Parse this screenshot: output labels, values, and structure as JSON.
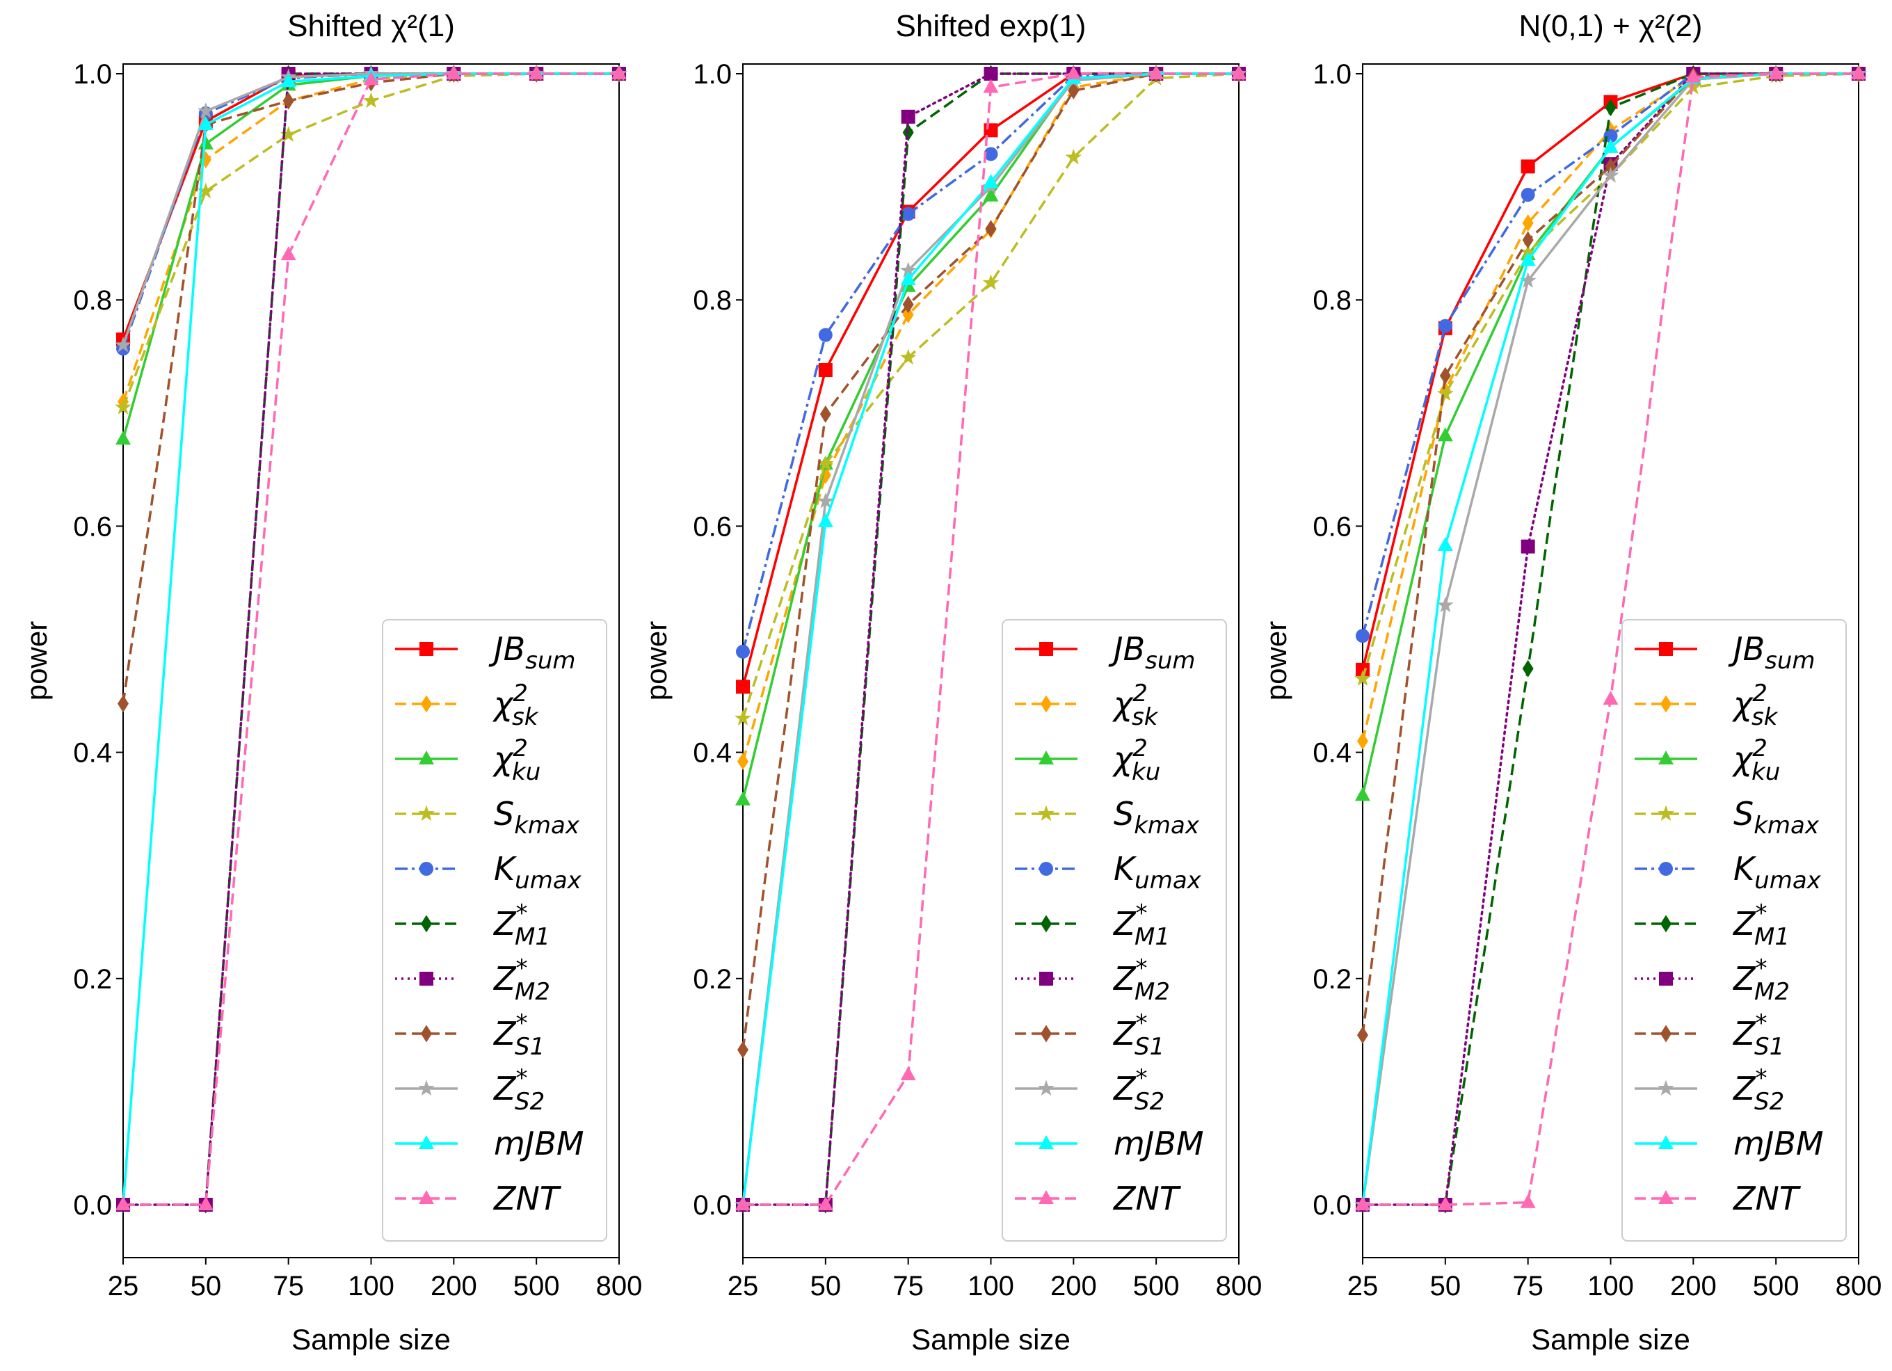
{
  "chart_data": [
    {
      "type": "line",
      "title": "Shifted χ²(1)",
      "xlabel": "Sample size",
      "ylabel": "power",
      "ylim": [
        -0.05,
        1.01
      ],
      "yticks": [
        "0.0",
        "0.2",
        "0.4",
        "0.6",
        "0.8",
        "1.0"
      ],
      "categories": [
        "25",
        "50",
        "75",
        "100",
        "200",
        "500",
        "800"
      ],
      "legend_position": "lower-right",
      "series": [
        {
          "name": "JBsum",
          "values": [
            0.765,
            0.958,
            0.998,
            1.0,
            1.0,
            1.0,
            1.0
          ]
        },
        {
          "name": "χ²sk",
          "values": [
            0.71,
            0.924,
            0.976,
            0.995,
            1.0,
            1.0,
            1.0
          ]
        },
        {
          "name": "χ²ku",
          "values": [
            0.677,
            0.938,
            0.99,
            0.998,
            1.0,
            1.0,
            1.0
          ]
        },
        {
          "name": "Skmax",
          "values": [
            0.705,
            0.896,
            0.946,
            0.976,
            0.998,
            1.0,
            1.0
          ]
        },
        {
          "name": "Kumax",
          "values": [
            0.757,
            0.965,
            0.996,
            1.0,
            1.0,
            1.0,
            1.0
          ]
        },
        {
          "name": "Z*M1",
          "values": [
            0.0,
            0.0,
            1.0,
            1.0,
            1.0,
            1.0,
            1.0
          ]
        },
        {
          "name": "Z*M2",
          "values": [
            0.0,
            0.0,
            1.0,
            1.0,
            1.0,
            1.0,
            1.0
          ]
        },
        {
          "name": "Z*S1",
          "values": [
            0.443,
            0.955,
            0.976,
            0.992,
            1.0,
            1.0,
            1.0
          ]
        },
        {
          "name": "Z*S2",
          "values": [
            0.76,
            0.967,
            0.997,
            1.0,
            1.0,
            1.0,
            1.0
          ]
        },
        {
          "name": "mJBM",
          "values": [
            0.0,
            0.955,
            0.993,
            0.998,
            1.0,
            1.0,
            1.0
          ]
        },
        {
          "name": "ZNT",
          "values": [
            0.0,
            0.0,
            0.84,
            0.995,
            1.0,
            1.0,
            1.0
          ]
        }
      ]
    },
    {
      "type": "line",
      "title": "Shifted exp(1)",
      "xlabel": "Sample size",
      "ylabel": "power",
      "ylim": [
        -0.05,
        1.01
      ],
      "yticks": [
        "0.0",
        "0.2",
        "0.4",
        "0.6",
        "0.8",
        "1.0"
      ],
      "categories": [
        "25",
        "50",
        "75",
        "100",
        "200",
        "500",
        "800"
      ],
      "legend_position": "lower-right",
      "series": [
        {
          "name": "JBsum",
          "values": [
            0.458,
            0.738,
            0.878,
            0.95,
            1.0,
            1.0,
            1.0
          ]
        },
        {
          "name": "χ²sk",
          "values": [
            0.392,
            0.645,
            0.787,
            0.862,
            0.988,
            1.0,
            1.0
          ]
        },
        {
          "name": "χ²ku",
          "values": [
            0.358,
            0.655,
            0.812,
            0.892,
            0.996,
            1.0,
            1.0
          ]
        },
        {
          "name": "Skmax",
          "values": [
            0.43,
            0.655,
            0.749,
            0.815,
            0.926,
            0.996,
            1.0
          ]
        },
        {
          "name": "Kumax",
          "values": [
            0.489,
            0.769,
            0.876,
            0.929,
            0.998,
            1.0,
            1.0
          ]
        },
        {
          "name": "Z*M1",
          "values": [
            0.0,
            0.0,
            0.948,
            1.0,
            1.0,
            1.0,
            1.0
          ]
        },
        {
          "name": "Z*M2",
          "values": [
            0.0,
            0.0,
            0.962,
            1.0,
            1.0,
            1.0,
            1.0
          ]
        },
        {
          "name": "Z*S1",
          "values": [
            0.137,
            0.699,
            0.796,
            0.863,
            0.985,
            1.0,
            1.0
          ]
        },
        {
          "name": "Z*S2",
          "values": [
            0.0,
            0.622,
            0.826,
            0.9,
            0.994,
            1.0,
            1.0
          ]
        },
        {
          "name": "mJBM",
          "values": [
            0.0,
            0.604,
            0.818,
            0.904,
            0.996,
            1.0,
            1.0
          ]
        },
        {
          "name": "ZNT",
          "values": [
            0.0,
            0.0,
            0.115,
            0.988,
            1.0,
            1.0,
            1.0
          ]
        }
      ]
    },
    {
      "type": "line",
      "title": "N(0,1) + χ²(2)",
      "xlabel": "Sample size",
      "ylabel": "power",
      "ylim": [
        -0.05,
        1.01
      ],
      "yticks": [
        "0.0",
        "0.2",
        "0.4",
        "0.6",
        "0.8",
        "1.0"
      ],
      "categories": [
        "25",
        "50",
        "75",
        "100",
        "200",
        "500",
        "800"
      ],
      "legend_position": "lower-right",
      "series": [
        {
          "name": "JBsum",
          "values": [
            0.473,
            0.775,
            0.918,
            0.975,
            1.0,
            1.0,
            1.0
          ]
        },
        {
          "name": "χ²sk",
          "values": [
            0.41,
            0.72,
            0.868,
            0.95,
            0.998,
            1.0,
            1.0
          ]
        },
        {
          "name": "χ²ku",
          "values": [
            0.362,
            0.68,
            0.84,
            0.935,
            0.995,
            1.0,
            1.0
          ]
        },
        {
          "name": "Skmax",
          "values": [
            0.465,
            0.717,
            0.842,
            0.91,
            0.988,
            0.998,
            1.0
          ]
        },
        {
          "name": "Kumax",
          "values": [
            0.503,
            0.777,
            0.893,
            0.945,
            1.0,
            1.0,
            1.0
          ]
        },
        {
          "name": "Z*M1",
          "values": [
            0.0,
            0.0,
            0.474,
            0.97,
            1.0,
            1.0,
            1.0
          ]
        },
        {
          "name": "Z*M2",
          "values": [
            0.0,
            0.0,
            0.582,
            0.92,
            1.0,
            1.0,
            1.0
          ]
        },
        {
          "name": "Z*S1",
          "values": [
            0.15,
            0.733,
            0.853,
            0.918,
            0.998,
            1.0,
            1.0
          ]
        },
        {
          "name": "Z*S2",
          "values": [
            0.0,
            0.53,
            0.817,
            0.91,
            0.995,
            1.0,
            1.0
          ]
        },
        {
          "name": "mJBM",
          "values": [
            0.0,
            0.583,
            0.835,
            0.935,
            0.996,
            1.0,
            1.0
          ]
        },
        {
          "name": "ZNT",
          "values": [
            0.0,
            0.0,
            0.002,
            0.447,
            0.997,
            1.0,
            1.0
          ]
        }
      ]
    }
  ],
  "legend": [
    {
      "key": "JBsum",
      "base": "JB",
      "sub": "sum",
      "sup": "",
      "color": "#ff0000",
      "dash": "",
      "marker": "square"
    },
    {
      "key": "chi2sk",
      "base": "χ",
      "sub": "sk",
      "sup": "2",
      "color": "#ffa500",
      "dash": "16 8",
      "marker": "diamond"
    },
    {
      "key": "chi2ku",
      "base": "χ",
      "sub": "ku",
      "sup": "2",
      "color": "#32cd32",
      "dash": "",
      "marker": "triangle"
    },
    {
      "key": "Skmax",
      "base": "S",
      "sub": "kmax",
      "sup": "",
      "color": "#bcbd22",
      "dash": "16 8",
      "marker": "star"
    },
    {
      "key": "Kumax",
      "base": "K",
      "sub": "umax",
      "sup": "",
      "color": "#4169e1",
      "dash": "18 6 4 6",
      "marker": "circle"
    },
    {
      "key": "ZM1",
      "base": "Z",
      "sub": "M1",
      "sup": "*",
      "color": "#006400",
      "dash": "16 8",
      "marker": "diamond"
    },
    {
      "key": "ZM2",
      "base": "Z",
      "sub": "M2",
      "sup": "*",
      "color": "#800080",
      "dash": "3 6",
      "marker": "square"
    },
    {
      "key": "ZS1",
      "base": "Z",
      "sub": "S1",
      "sup": "*",
      "color": "#a0522d",
      "dash": "16 8",
      "marker": "diamond"
    },
    {
      "key": "ZS2",
      "base": "Z",
      "sub": "S2",
      "sup": "*",
      "color": "#a9a9a9",
      "dash": "",
      "marker": "star"
    },
    {
      "key": "mJBM",
      "base": "mJBM",
      "sub": "",
      "sup": "",
      "color": "#00ffff",
      "dash": "",
      "marker": "triangle"
    },
    {
      "key": "ZNT",
      "base": "ZNT",
      "sub": "",
      "sup": "",
      "color": "#ff69b4",
      "dash": "16 8",
      "marker": "triangle"
    }
  ]
}
